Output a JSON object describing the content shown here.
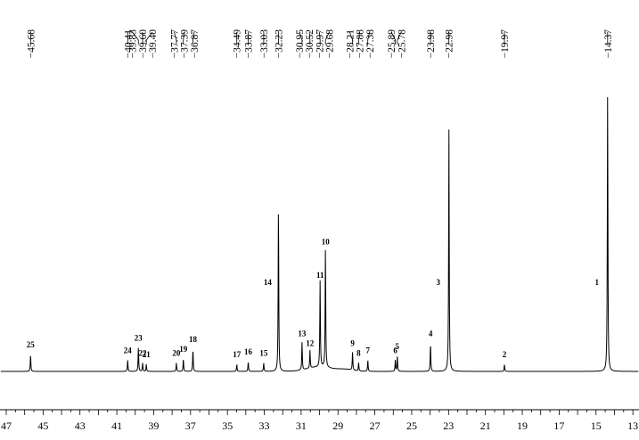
{
  "chart_data": {
    "type": "line",
    "title": "",
    "xlabel": "",
    "ylabel": "",
    "xlim": [
      47,
      13
    ],
    "x_reversed": true,
    "x_ticks": [
      47,
      45,
      43,
      41,
      39,
      37,
      35,
      33,
      31,
      29,
      27,
      25,
      23,
      21,
      19,
      17,
      15,
      13
    ],
    "x_tick_labels": [
      "47",
      "45",
      "43",
      "41",
      "39",
      "37",
      "35",
      "33",
      "31",
      "29",
      "27",
      "25",
      "23",
      "21",
      "19",
      "17",
      "15",
      "13"
    ],
    "grid": false,
    "shift_labels": [
      "45.68",
      "40.41",
      "39.83",
      "39.60",
      "39.40",
      "37.77",
      "37.39",
      "36.87",
      "34.49",
      "33.87",
      "33.03",
      "32.23",
      "30.95",
      "30.52",
      "29.97",
      "29.68",
      "28.21",
      "27.88",
      "27.38",
      "25.89",
      "25.78",
      "23.98",
      "22.98",
      "19.97",
      "14.37"
    ],
    "shift_values": [
      45.68,
      40.41,
      39.83,
      39.6,
      39.4,
      37.77,
      37.39,
      36.87,
      34.49,
      33.87,
      33.03,
      32.23,
      30.95,
      30.52,
      29.97,
      29.68,
      28.21,
      27.88,
      27.38,
      25.89,
      25.78,
      23.98,
      22.98,
      19.97,
      14.37
    ],
    "peaks": [
      {
        "label": "1",
        "ppm": 14.37,
        "intensity": 100
      },
      {
        "label": "2",
        "ppm": 19.97,
        "intensity": 2.5
      },
      {
        "label": "3",
        "ppm": 22.98,
        "intensity": 87
      },
      {
        "label": "4",
        "ppm": 23.98,
        "intensity": 10
      },
      {
        "label": "5",
        "ppm": 25.78,
        "intensity": 5.5
      },
      {
        "label": "6",
        "ppm": 25.89,
        "intensity": 4
      },
      {
        "label": "7",
        "ppm": 27.38,
        "intensity": 4
      },
      {
        "label": "8",
        "ppm": 27.88,
        "intensity": 3
      },
      {
        "label": "9",
        "ppm": 28.21,
        "intensity": 6.5
      },
      {
        "label": "10",
        "ppm": 29.68,
        "intensity": 43
      },
      {
        "label": "11",
        "ppm": 29.97,
        "intensity": 31
      },
      {
        "label": "12",
        "ppm": 30.52,
        "intensity": 6.5
      },
      {
        "label": "13",
        "ppm": 30.95,
        "intensity": 10
      },
      {
        "label": "14",
        "ppm": 32.23,
        "intensity": 60
      },
      {
        "label": "15",
        "ppm": 33.03,
        "intensity": 3
      },
      {
        "label": "16",
        "ppm": 33.87,
        "intensity": 3.5
      },
      {
        "label": "17",
        "ppm": 34.49,
        "intensity": 2.5
      },
      {
        "label": "18",
        "ppm": 36.87,
        "intensity": 8
      },
      {
        "label": "19",
        "ppm": 37.39,
        "intensity": 4.5
      },
      {
        "label": "20",
        "ppm": 37.77,
        "intensity": 3
      },
      {
        "label": "21",
        "ppm": 39.4,
        "intensity": 2.5
      },
      {
        "label": "22",
        "ppm": 39.6,
        "intensity": 3
      },
      {
        "label": "23",
        "ppm": 39.83,
        "intensity": 8.5
      },
      {
        "label": "24",
        "ppm": 40.41,
        "intensity": 4
      },
      {
        "label": "25",
        "ppm": 45.68,
        "intensity": 6
      }
    ]
  }
}
